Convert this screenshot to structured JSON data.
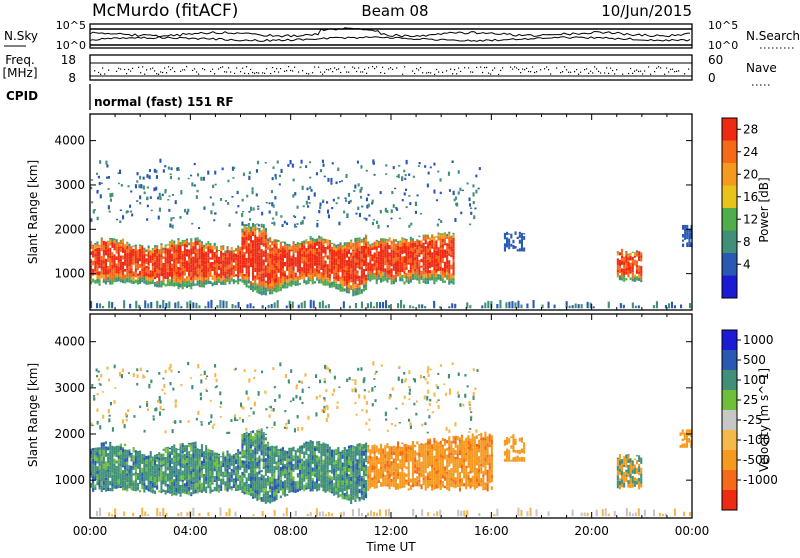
{
  "header": {
    "station": "McMurdo (fitACF)",
    "beam": "Beam 08",
    "date": "10/Jun/2015"
  },
  "noise_panel": {
    "left_label": "N.Sky",
    "right_label": "N.Search",
    "left_ticks": [
      "10^5",
      "10^0"
    ],
    "right_ticks": [
      "10^5",
      "10^0"
    ]
  },
  "freq_panel": {
    "left_label_line1": "Freq.",
    "left_label_line2": "[MHz]",
    "right_label": "Nave",
    "left_ticks": [
      "18",
      "8"
    ],
    "right_ticks": [
      "60",
      "0"
    ]
  },
  "cpid": {
    "label": "CPID",
    "value": "normal (fast) 151 RF"
  },
  "colors": {
    "power": [
      "#1b1bd6",
      "#2a59b3",
      "#3f8f79",
      "#4fae4a",
      "#e8c41a",
      "#f59a1e",
      "#f46a18",
      "#ef2a12"
    ],
    "velocity": [
      "#ef2a12",
      "#f46a18",
      "#f59a1e",
      "#f5b84a",
      "#c7c7c7",
      "#6fbf3a",
      "#3f8f79",
      "#2a59b3",
      "#1b1bd6"
    ]
  },
  "chart_data": [
    {
      "type": "heatmap",
      "title": "",
      "xlabel": "",
      "ylabel": "Slant Range [km]",
      "x_ticks": [
        "00:00",
        "04:00",
        "08:00",
        "12:00",
        "16:00",
        "20:00",
        "00:00"
      ],
      "y_ticks": [
        1000,
        2000,
        3000,
        4000
      ],
      "ylim": [
        180,
        4600
      ],
      "colorbar": {
        "label": "Power [dB]",
        "ticks": [
          "4",
          "8",
          "12",
          "16",
          "20",
          "24",
          "28"
        ]
      },
      "series": [
        {
          "time_range": [
            "00:00",
            "14:30"
          ],
          "range_km": [
            500,
            1900
          ],
          "value": "Power 20-30 dB"
        },
        {
          "time_range": [
            "21:00",
            "22:00"
          ],
          "range_km": [
            800,
            1500
          ],
          "value": "Power 20-30 dB"
        }
      ]
    },
    {
      "type": "heatmap",
      "title": "",
      "xlabel": "Time UT",
      "ylabel": "Slant Range [km]",
      "x_ticks": [
        "00:00",
        "04:00",
        "08:00",
        "12:00",
        "16:00",
        "20:00",
        "00:00"
      ],
      "y_ticks": [
        1000,
        2000,
        3000,
        4000
      ],
      "ylim": [
        180,
        4600
      ],
      "colorbar": {
        "label": "Velocity [m s^-1]",
        "ticks": [
          "1000",
          "500",
          "100",
          "25",
          "-25",
          "-100",
          "-500",
          "-1000"
        ]
      },
      "series": [
        {
          "time_range": [
            "00:00",
            "11:00"
          ],
          "range_km": [
            500,
            1800
          ],
          "value": "Velocity 100 to 1000 m/s"
        },
        {
          "time_range": [
            "11:00",
            "16:00"
          ],
          "range_km": [
            800,
            1900
          ],
          "value": "Velocity -100 to -500 m/s"
        }
      ]
    }
  ]
}
